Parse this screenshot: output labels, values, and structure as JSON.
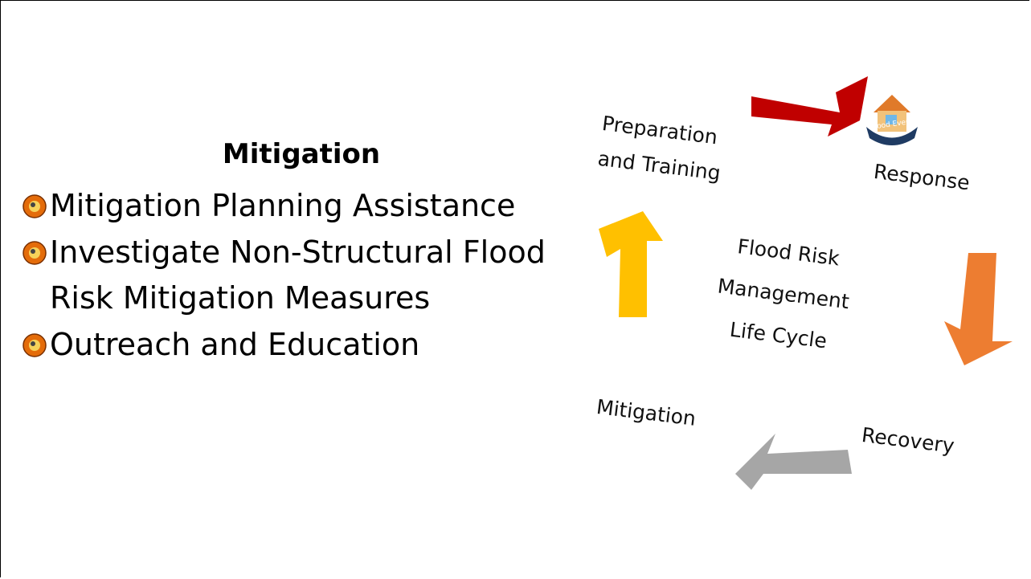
{
  "slide": {
    "title": "Mitigation",
    "bullets": [
      "Mitigation Planning Assistance",
      "Investigate Non-Structural Flood Risk Mitigation Measures",
      "Outreach and Education"
    ]
  },
  "diagram": {
    "center": [
      "Flood Risk",
      "Management",
      "Life Cycle"
    ],
    "stages": [
      {
        "lines": [
          "Preparation",
          "and Training"
        ]
      },
      {
        "lines": [
          "Response"
        ]
      },
      {
        "lines": [
          "Recovery"
        ]
      },
      {
        "lines": [
          "Mitigation"
        ]
      }
    ],
    "event_icon": "Flood Event"
  }
}
